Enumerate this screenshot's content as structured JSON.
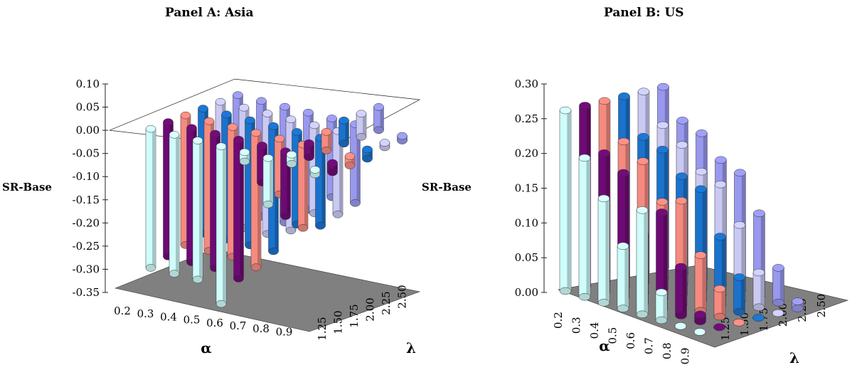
{
  "chart_data": [
    {
      "type": "bar3d",
      "title": "Panel A: Asia",
      "zlabel": "SR-Base",
      "xlabel": "α",
      "ylabel": "λ",
      "alpha_ticks": [
        "0.2",
        "0.3",
        "0.4",
        "0.5",
        "0.6",
        "0.7",
        "0.8",
        "0.9"
      ],
      "lambda_ticks": [
        "1.25",
        "1.50",
        "1.75",
        "2.00",
        "2.25",
        "2.50"
      ],
      "z_ticks": [
        "0.10",
        "0.05",
        "0.00",
        "-0.05",
        "-0.10",
        "-0.15",
        "-0.20",
        "-0.25",
        "-0.30",
        "-0.35"
      ],
      "zlim": [
        -0.35,
        0.1
      ],
      "series_colors": [
        "#cffdfb",
        "#6e0a74",
        "#f58a80",
        "#1a72cc",
        "#c9c9f3",
        "#9898ee"
      ],
      "values": [
        [
          -0.3,
          -0.29,
          -0.28,
          -0.27,
          -0.26,
          -0.25
        ],
        [
          -0.3,
          -0.29,
          -0.28,
          -0.27,
          -0.26,
          -0.25
        ],
        [
          -0.3,
          -0.29,
          -0.28,
          -0.27,
          -0.26,
          -0.25
        ],
        [
          -0.34,
          -0.3,
          -0.29,
          -0.27,
          -0.24,
          -0.21
        ],
        [
          -0.02,
          -0.08,
          -0.12,
          -0.2,
          -0.19,
          -0.17
        ],
        [
          -0.1,
          -0.14,
          -0.18,
          -0.19,
          -0.18,
          -0.17
        ],
        [
          0.02,
          0.03,
          0.04,
          0.05,
          0.05,
          0.05
        ],
        [
          -0.01,
          -0.02,
          -0.02,
          -0.02,
          -0.01,
          -0.01
        ]
      ]
    },
    {
      "type": "bar3d",
      "title": "Panel B: US",
      "zlabel": "SR-Base",
      "xlabel": "α",
      "ylabel": "λ",
      "alpha_ticks": [
        "0.2",
        "0.3",
        "0.4",
        "0.5",
        "0.6",
        "0.7",
        "0.8",
        "0.9"
      ],
      "lambda_ticks": [
        "1.25",
        "1.50",
        "1.75",
        "2.00",
        "2.25",
        "2.50"
      ],
      "z_ticks": [
        "0.30",
        "0.25",
        "0.20",
        "0.15",
        "0.10",
        "0.05",
        "0.00"
      ],
      "zlim": [
        0.0,
        0.3
      ],
      "series_colors": [
        "#cffdfb",
        "#6e0a74",
        "#f58a80",
        "#1a72cc",
        "#c9c9f3",
        "#9898ee"
      ],
      "values": [
        [
          0.26,
          0.26,
          0.26,
          0.26,
          0.26,
          0.26
        ],
        [
          0.2,
          0.2,
          0.21,
          0.21,
          0.22,
          0.22
        ],
        [
          0.15,
          0.18,
          0.19,
          0.2,
          0.2,
          0.21
        ],
        [
          0.09,
          0.1,
          0.14,
          0.17,
          0.17,
          0.18
        ],
        [
          0.15,
          0.14,
          0.15,
          0.16,
          0.16,
          0.17
        ],
        [
          0.04,
          0.07,
          0.08,
          0.1,
          0.11,
          0.12
        ],
        [
          0.0,
          0.01,
          0.04,
          0.05,
          0.05,
          0.05
        ],
        [
          0.0,
          0.0,
          0.0,
          0.0,
          0.0,
          0.01
        ]
      ]
    }
  ]
}
